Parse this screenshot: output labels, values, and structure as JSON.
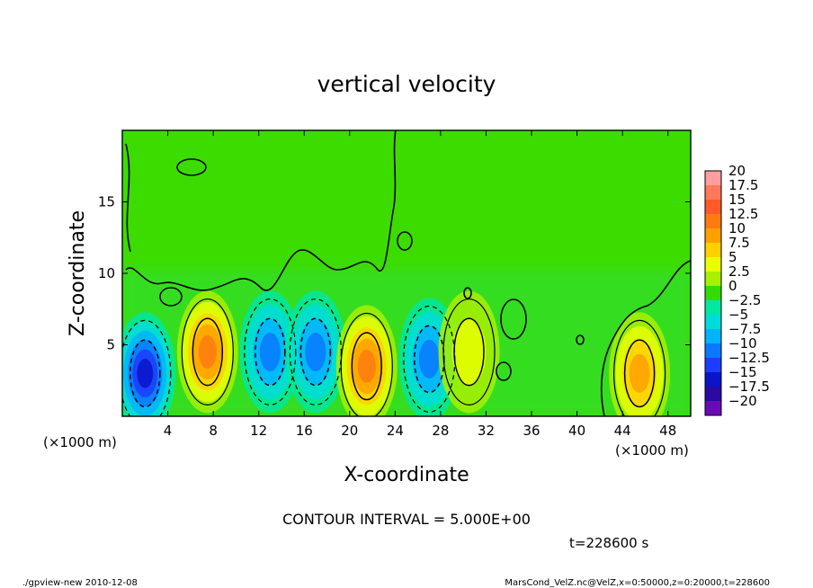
{
  "chart_data": {
    "type": "heatmap",
    "title": "vertical velocity",
    "xlabel": "X-coordinate",
    "ylabel": "Z-coordinate",
    "x_unit": "(×1000 m)",
    "y_unit": "(×1000 m)",
    "xlim": [
      0,
      50
    ],
    "ylim": [
      0,
      20
    ],
    "x_ticks": [
      "4",
      "8",
      "12",
      "16",
      "20",
      "24",
      "28",
      "32",
      "36",
      "40",
      "44",
      "48"
    ],
    "y_ticks": [
      "5",
      "10",
      "15"
    ],
    "contour_interval_text": "CONTOUR INTERVAL = 5.000E+00",
    "contour_interval": 5,
    "time_label": "t=228600 s",
    "colorbar": {
      "labels": [
        "20",
        "17.5",
        "15",
        "12.5",
        "10",
        "7.5",
        "5",
        "2.5",
        "0",
        "−2.5",
        "−5",
        "−7.5",
        "−10",
        "−12.5",
        "−15",
        "−17.5",
        "−20"
      ],
      "colors": [
        "#ff9e9e",
        "#ff7a5a",
        "#ff5a28",
        "#ff7a10",
        "#ffa000",
        "#ffd000",
        "#e8ff00",
        "#a8f000",
        "#32dc00",
        "#00e8a0",
        "#00dcdc",
        "#00b4ff",
        "#0a78ff",
        "#1e3cff",
        "#0a14c8",
        "#2a0aa0",
        "#6a0ab4"
      ]
    },
    "features": [
      {
        "x": 2.0,
        "z": 3.0,
        "w": -15
      },
      {
        "x": 7.5,
        "z": 4.5,
        "w": 12.5
      },
      {
        "x": 13.0,
        "z": 4.5,
        "w": -12
      },
      {
        "x": 17.0,
        "z": 4.5,
        "w": -12
      },
      {
        "x": 21.5,
        "z": 3.5,
        "w": 12.5
      },
      {
        "x": 27.0,
        "z": 4.0,
        "w": -12
      },
      {
        "x": 30.5,
        "z": 4.5,
        "w": 5
      },
      {
        "x": 45.5,
        "z": 3.0,
        "w": 12
      }
    ]
  },
  "footer": {
    "left": "./gpview-new   2010-12-08",
    "right": "MarsCond_VelZ.nc@VelZ,x=0:50000,z=0:20000,t=228600"
  }
}
